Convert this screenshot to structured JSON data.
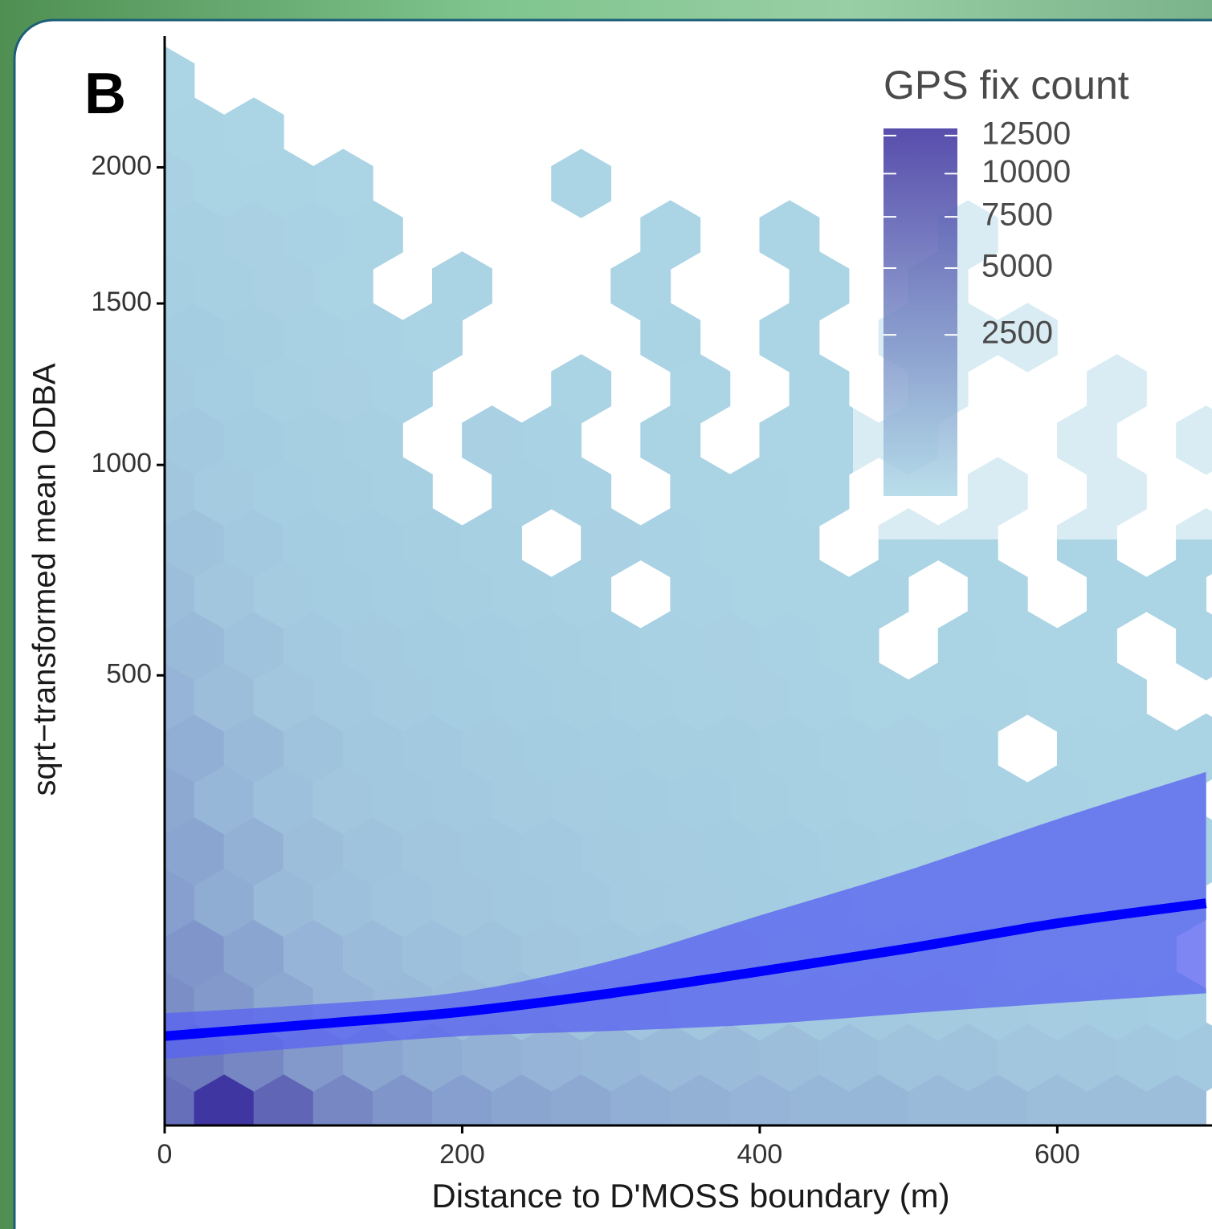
{
  "chart_data": {
    "type": "hexbin",
    "panel_label": "B",
    "x_label": "Distance to D'MOSS boundary (m)",
    "y_label": "sqrt−transformed mean ODBA",
    "xlim": [
      0,
      704
    ],
    "ylim": [
      6.5,
      2550
    ],
    "y_scale": "sqrt",
    "xticks": [
      0,
      200,
      400,
      600
    ],
    "yticks": [
      500,
      1000,
      1500,
      2000
    ],
    "color_low": "#add8e6",
    "color_high": "#3b2f9e",
    "rows": [
      {
        "y": 11,
        "x": [
          0,
          40,
          80,
          120,
          160,
          200,
          240,
          280,
          320,
          360,
          400,
          440,
          480,
          520,
          560,
          600,
          640,
          680
        ],
        "counts": [
          5000,
          12000,
          6000,
          3000,
          2000,
          1500,
          1200,
          1000,
          800,
          700,
          600,
          500,
          500,
          400,
          400,
          300,
          300,
          300
        ]
      },
      {
        "y": 31,
        "x": [
          20,
          60,
          100,
          140,
          180,
          220,
          260,
          300,
          340,
          380,
          420,
          460,
          500,
          540,
          580,
          620,
          660,
          700
        ],
        "counts": [
          4000,
          3000,
          1800,
          1200,
          900,
          700,
          600,
          500,
          400,
          350,
          300,
          250,
          200,
          200,
          150,
          150,
          120,
          100
        ]
      },
      {
        "y": 61,
        "x": [
          0,
          40,
          80,
          120,
          160,
          200,
          240,
          280,
          320,
          360,
          400,
          440,
          480,
          520,
          560,
          600,
          640,
          680
        ],
        "counts": [
          2500,
          1800,
          1000,
          600,
          400,
          300,
          250,
          200,
          180,
          150,
          120,
          100,
          100,
          90,
          80,
          70,
          60,
          50
        ]
      },
      {
        "y": 102,
        "x": [
          20,
          60,
          100,
          140,
          180,
          220,
          260,
          300,
          340,
          380,
          420,
          460,
          500,
          540,
          580,
          620,
          660,
          700
        ],
        "counts": [
          2000,
          1200,
          600,
          350,
          250,
          200,
          150,
          120,
          100,
          90,
          80,
          70,
          60,
          50,
          40,
          40,
          30,
          null
        ]
      },
      {
        "y": 153,
        "x": [
          0,
          40,
          80,
          120,
          160,
          200,
          240,
          280,
          320,
          360,
          400,
          440,
          480,
          520,
          560,
          600,
          640,
          680
        ],
        "counts": [
          1500,
          900,
          400,
          250,
          180,
          150,
          120,
          100,
          80,
          70,
          60,
          50,
          40,
          40,
          30,
          30,
          20,
          20
        ]
      },
      {
        "y": 214,
        "x": [
          20,
          60,
          100,
          140,
          180,
          220,
          260,
          300,
          340,
          380,
          420,
          460,
          500,
          540,
          580,
          620,
          660,
          700
        ],
        "counts": [
          1200,
          700,
          300,
          200,
          150,
          120,
          100,
          80,
          70,
          60,
          50,
          40,
          30,
          30,
          20,
          20,
          15,
          15
        ]
      },
      {
        "y": 285,
        "x": [
          0,
          40,
          80,
          120,
          160,
          200,
          240,
          280,
          320,
          360,
          400,
          440,
          480,
          520,
          560,
          600,
          640,
          680
        ],
        "counts": [
          1000,
          500,
          250,
          150,
          120,
          100,
          80,
          70,
          60,
          50,
          40,
          30,
          25,
          20,
          15,
          15,
          10,
          10
        ]
      },
      {
        "y": 367,
        "x": [
          20,
          60,
          100,
          140,
          180,
          220,
          260,
          300,
          340,
          380,
          420,
          460,
          500,
          540,
          580,
          620,
          660,
          700
        ],
        "counts": [
          800,
          400,
          200,
          120,
          100,
          80,
          60,
          50,
          40,
          35,
          30,
          25,
          20,
          15,
          null,
          10,
          8,
          8
        ]
      },
      {
        "y": 458,
        "x": [
          0,
          40,
          80,
          120,
          160,
          200,
          240,
          280,
          320,
          360,
          400,
          440,
          480,
          520,
          560,
          600,
          640,
          680
        ],
        "counts": [
          600,
          300,
          150,
          100,
          80,
          60,
          50,
          40,
          30,
          25,
          20,
          15,
          12,
          10,
          8,
          6,
          5,
          null
        ]
      },
      {
        "y": 560,
        "x": [
          20,
          60,
          100,
          140,
          180,
          220,
          260,
          300,
          340,
          380,
          420,
          460,
          500,
          540,
          580,
          620,
          660,
          700
        ],
        "counts": [
          400,
          200,
          100,
          80,
          60,
          50,
          40,
          30,
          25,
          20,
          15,
          12,
          null,
          8,
          6,
          5,
          null,
          4
        ]
      },
      {
        "y": 672,
        "x": [
          0,
          40,
          80,
          120,
          160,
          200,
          240,
          280,
          320,
          360,
          400,
          440,
          480,
          520,
          560,
          600,
          640,
          680
        ],
        "counts": [
          300,
          150,
          80,
          60,
          50,
          40,
          30,
          25,
          null,
          15,
          12,
          10,
          8,
          null,
          5,
          null,
          4,
          3
        ]
      },
      {
        "y": 795,
        "x": [
          20,
          60,
          100,
          140,
          180,
          220,
          260,
          300,
          340,
          380,
          420,
          460,
          500,
          540,
          580,
          620,
          660,
          700
        ],
        "counts": [
          200,
          100,
          60,
          50,
          40,
          30,
          null,
          20,
          15,
          12,
          10,
          null,
          6,
          5,
          null,
          4,
          null,
          3
        ]
      },
      {
        "y": 927,
        "x": [
          0,
          40,
          80,
          120,
          160,
          200,
          240,
          280,
          320,
          360,
          400,
          440,
          480,
          520,
          560,
          600,
          640,
          680
        ],
        "counts": [
          150,
          80,
          50,
          40,
          30,
          null,
          25,
          15,
          null,
          10,
          8,
          6,
          null,
          null,
          3,
          null,
          2,
          null
        ]
      },
      {
        "y": 1070,
        "x": [
          20,
          60,
          100,
          140,
          180,
          220,
          260,
          300,
          340,
          380,
          420,
          460,
          500,
          540,
          580,
          620,
          660,
          700
        ],
        "counts": [
          100,
          60,
          40,
          30,
          null,
          20,
          15,
          null,
          10,
          null,
          6,
          5,
          4,
          null,
          null,
          2,
          null,
          2
        ]
      },
      {
        "y": 1223,
        "x": [
          0,
          40,
          80,
          120,
          160,
          200,
          240,
          280,
          320,
          360,
          400,
          440,
          480,
          520,
          560,
          600,
          640,
          680
        ],
        "counts": [
          80,
          50,
          30,
          20,
          15,
          null,
          null,
          10,
          null,
          6,
          null,
          4,
          null,
          3,
          null,
          null,
          2,
          null
        ]
      },
      {
        "y": 1386,
        "x": [
          20,
          60,
          100,
          140,
          180,
          220,
          260,
          300,
          340,
          380,
          420,
          460,
          500,
          540,
          580,
          620,
          660,
          700
        ],
        "counts": [
          60,
          40,
          25,
          15,
          12,
          null,
          null,
          null,
          8,
          null,
          5,
          null,
          4,
          3,
          2,
          null,
          null,
          null
        ]
      },
      {
        "y": 1560,
        "x": [
          0,
          40,
          80,
          120,
          160,
          200,
          240,
          280,
          320,
          360,
          400,
          440,
          480,
          520,
          560,
          600,
          640,
          680
        ],
        "counts": [
          40,
          30,
          20,
          12,
          null,
          10,
          null,
          null,
          6,
          null,
          null,
          4,
          null,
          2,
          null,
          null,
          null,
          null
        ]
      },
      {
        "y": 1743,
        "x": [
          20,
          60,
          100,
          140,
          180,
          220,
          260,
          300,
          340,
          380,
          420,
          460,
          500,
          540,
          580,
          620,
          660,
          700
        ],
        "counts": [
          30,
          20,
          15,
          10,
          null,
          null,
          null,
          null,
          4,
          null,
          3,
          null,
          null,
          2,
          null,
          null,
          null,
          null
        ]
      },
      {
        "y": 1937,
        "x": [
          0,
          40,
          80,
          120,
          160,
          200,
          240,
          280,
          320,
          360,
          400,
          440,
          480,
          520,
          560,
          600,
          640,
          680
        ],
        "counts": [
          20,
          12,
          8,
          6,
          null,
          null,
          null,
          4,
          null,
          null,
          null,
          null,
          null,
          null,
          null,
          null,
          null,
          null
        ]
      },
      {
        "y": 2141,
        "x": [
          20,
          60,
          100,
          140,
          180,
          220,
          260,
          300,
          340,
          380,
          420,
          460,
          500,
          540,
          580,
          620,
          660,
          700
        ],
        "counts": [
          10,
          6,
          null,
          null,
          null,
          null,
          null,
          null,
          null,
          null,
          null,
          null,
          null,
          null,
          null,
          null,
          null,
          null
        ]
      },
      {
        "y": 2355,
        "x": [
          0,
          40,
          80,
          120,
          160,
          200,
          240,
          280,
          320,
          360,
          400,
          440,
          480,
          520,
          560,
          600,
          640,
          680
        ],
        "counts": [
          6,
          null,
          null,
          null,
          null,
          null,
          null,
          null,
          null,
          null,
          null,
          null,
          null,
          null,
          null,
          null,
          null,
          null
        ]
      }
    ],
    "fit": {
      "x": [
        0,
        100,
        200,
        300,
        400,
        500,
        600,
        700
      ],
      "values": [
        42,
        49,
        57,
        70,
        87,
        107,
        131,
        152
      ],
      "upper": [
        56,
        62,
        71,
        96,
        139,
        190,
        257,
        328
      ],
      "lower": [
        30,
        36,
        42,
        45,
        49,
        56,
        63,
        70
      ],
      "color": "#0000ff",
      "fill": "#5a64f0"
    },
    "legend": {
      "title": "GPS fix count",
      "position": "top-right",
      "lim": [
        0,
        13000
      ],
      "scale": "sqrt",
      "ticks": [
        2500,
        5000,
        7500,
        10000,
        12500
      ]
    }
  }
}
